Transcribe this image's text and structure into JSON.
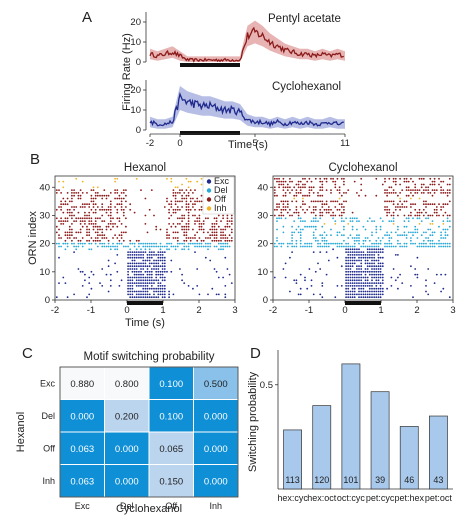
{
  "chart_data": [
    {
      "panel": "A",
      "type": "line",
      "ylabel": "Firing Rate (Hz)",
      "xlabel": "Time (s)",
      "xlim": [
        -2,
        11
      ],
      "xticks": [
        "-2",
        "0",
        "5",
        "11"
      ],
      "stimulus_bar": [
        0,
        4
      ],
      "subplots": [
        {
          "title": "Pentyl acetate",
          "color": "#8b1a1a",
          "band_color": "#e3a6a6",
          "ylim": [
            0,
            25
          ],
          "yticks": [
            "0",
            "10",
            "20"
          ],
          "x": [
            -2,
            -1.5,
            -1,
            -0.5,
            0,
            0.5,
            1,
            1.5,
            2,
            2.5,
            3,
            3.5,
            4,
            4.5,
            5,
            5.5,
            6,
            6.5,
            7,
            7.5,
            8,
            8.5,
            9,
            9.5,
            10,
            10.5,
            11
          ],
          "y": [
            4,
            3,
            4,
            5,
            3,
            1,
            1,
            1,
            1,
            1,
            1,
            1,
            1,
            13,
            15,
            13,
            10,
            8,
            6,
            5,
            4,
            4,
            3,
            4,
            3,
            4,
            3
          ]
        },
        {
          "title": "Cyclohexanol",
          "color": "#1f2a8c",
          "band_color": "#aab3e0",
          "ylim": [
            0,
            25
          ],
          "yticks": [
            "0",
            "10",
            "20"
          ],
          "x": [
            -2,
            -1.5,
            -1,
            -0.5,
            0,
            0.5,
            1,
            1.5,
            2,
            2.5,
            3,
            3.5,
            4,
            4.5,
            5,
            5.5,
            6,
            6.5,
            7,
            7.5,
            8,
            8.5,
            9,
            9.5,
            10,
            10.5,
            11
          ],
          "y": [
            4,
            3,
            3,
            4,
            16,
            14,
            13,
            12,
            12,
            11,
            10,
            10,
            9,
            5,
            4,
            4,
            3,
            4,
            3,
            4,
            3,
            4,
            3,
            3,
            4,
            3,
            3
          ]
        }
      ]
    },
    {
      "panel": "B",
      "type": "scatter",
      "ylabel": "ORN index",
      "xlabel": "Time (s)",
      "xlim": [
        -2,
        3
      ],
      "ylim": [
        0,
        44
      ],
      "xticks": [
        "-2",
        "-1",
        "0",
        "1",
        "2",
        "3"
      ],
      "yticks": [
        "0",
        "10",
        "20",
        "30",
        "40"
      ],
      "stimulus_bar": [
        0,
        1
      ],
      "legend": [
        {
          "label": "Exc",
          "color": "#1f2a8c"
        },
        {
          "label": "Del",
          "color": "#29a9d6"
        },
        {
          "label": "Off",
          "color": "#8b1a1a"
        },
        {
          "label": "Inh",
          "color": "#f0b323"
        }
      ],
      "subplots": [
        {
          "title": "Hexanol"
        },
        {
          "title": "Cyclohexanol"
        }
      ]
    },
    {
      "panel": "C",
      "type": "heatmap",
      "title": "Motif switching probability",
      "xlabel": "Cyclohexanol",
      "ylabel": "Hexanol",
      "col_labels": [
        "Exc",
        "Del",
        "Off",
        "Inh"
      ],
      "row_labels": [
        "Exc",
        "Del",
        "Off",
        "Inh"
      ],
      "values": [
        [
          "0.880",
          "0.800",
          "0.100",
          "0.500"
        ],
        [
          "0.000",
          "0.200",
          "0.100",
          "0.000"
        ],
        [
          "0.063",
          "0.000",
          "0.065",
          "0.000"
        ],
        [
          "0.063",
          "0.000",
          "0.150",
          "0.000"
        ]
      ]
    },
    {
      "panel": "D",
      "type": "bar",
      "ylabel": "Switching probability",
      "categories": [
        "hex:cyc",
        "hex:oct",
        "oct:cyc",
        "pet:cyc",
        "pet:hex",
        "pet:oct"
      ],
      "values": [
        0.37,
        0.44,
        0.56,
        0.48,
        0.38,
        0.41
      ],
      "counts": [
        "113",
        "120",
        "101",
        "39",
        "46",
        "43"
      ],
      "ylim": [
        0.2,
        0.6
      ],
      "yticks": [
        "0.5"
      ],
      "color": "#a9c9ec"
    }
  ],
  "labels": {
    "A": "A",
    "B": "B",
    "C": "C",
    "D": "D"
  }
}
